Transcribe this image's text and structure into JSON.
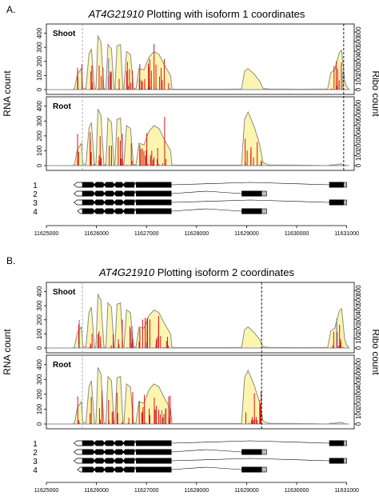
{
  "figure": {
    "panels": [
      {
        "letter": "A.",
        "title_gene": "AT4G21910",
        "title_rest": " Plotting with isoform 1 coordinates",
        "start_dash": 11625720,
        "stop_dash": 11630940,
        "tracks": [
          {
            "label": "Shoot",
            "stop_style": "dark"
          },
          {
            "label": "Root",
            "stop_style": "dark"
          }
        ]
      },
      {
        "letter": "B.",
        "title_gene": "AT4G21910",
        "title_rest": " Plotting isoform 2 coordinates",
        "start_dash": 11625720,
        "stop_dash": 11629300,
        "tracks": [
          {
            "label": "Shoot",
            "stop_style": "dark"
          },
          {
            "label": "Root",
            "stop_style": "dark"
          }
        ]
      }
    ],
    "rna_axis": {
      "label": "RNA count",
      "ticks": [
        "0",
        "100",
        "200",
        "300",
        "400"
      ]
    },
    "ribo_axis": {
      "label": "Ribo count",
      "ticks": [
        "0",
        "100",
        "200",
        "300",
        "400",
        "500",
        "600"
      ]
    },
    "x_axis": {
      "ticks": [
        11625000,
        11626000,
        11627000,
        11628000,
        11629000,
        11630000,
        11631000
      ],
      "tick_labels": [
        "11625000",
        "11626000",
        "11627000",
        "11628000",
        "11629000",
        "11630000",
        "11631000"
      ]
    },
    "isoforms": [
      {
        "label": "1",
        "start": 11625550,
        "end": 11631000,
        "utr5": [
          11625550,
          11625720
        ],
        "cds": [
          [
            11625720,
            11626760
          ],
          [
            11626790,
            11627500
          ],
          [
            11630650,
            11630940
          ]
        ],
        "utr3": [
          11630940,
          11631000
        ]
      },
      {
        "label": "2",
        "start": 11625550,
        "end": 11629400,
        "utr5": [
          11625550,
          11625720
        ],
        "cds": [
          [
            11625720,
            11626760
          ],
          [
            11626790,
            11627500
          ],
          [
            11628900,
            11629300
          ]
        ],
        "utr3": [
          11629300,
          11629400
        ]
      },
      {
        "label": "3",
        "start": 11625550,
        "end": 11631000,
        "utr5": [
          11625550,
          11625720
        ],
        "cds": [
          [
            11625720,
            11626760
          ],
          [
            11626790,
            11627500
          ],
          [
            11630650,
            11630940
          ]
        ],
        "utr3": [
          11630940,
          11631000
        ]
      },
      {
        "label": "4",
        "start": 11625620,
        "end": 11629400,
        "utr5": [
          11625620,
          11625720
        ],
        "cds": [
          [
            11625720,
            11626760
          ],
          [
            11626790,
            11627500
          ],
          [
            11628900,
            11629300
          ]
        ],
        "utr3": [
          11629300,
          11629400
        ]
      }
    ],
    "colors": {
      "rna_fill": "#fbf5b0",
      "rna_line": "#8c8c8c",
      "ribo": "#d9141b",
      "ribo_alt": "#5c6fb5",
      "dash": "#555555"
    },
    "coverage_profile": [
      [
        11625000,
        0
      ],
      [
        11625520,
        0
      ],
      [
        11625560,
        6
      ],
      [
        11625620,
        110
      ],
      [
        11625700,
        150
      ],
      [
        11625730,
        10
      ],
      [
        11625790,
        8
      ],
      [
        11625850,
        250
      ],
      [
        11625900,
        290
      ],
      [
        11625960,
        6
      ],
      [
        11625990,
        8
      ],
      [
        11626030,
        380
      ],
      [
        11626090,
        340
      ],
      [
        11626150,
        6
      ],
      [
        11626190,
        6
      ],
      [
        11626230,
        320
      ],
      [
        11626300,
        290
      ],
      [
        11626350,
        6
      ],
      [
        11626370,
        6
      ],
      [
        11626410,
        310
      ],
      [
        11626480,
        320
      ],
      [
        11626530,
        6
      ],
      [
        11626550,
        6
      ],
      [
        11626600,
        270
      ],
      [
        11626680,
        250
      ],
      [
        11626740,
        6
      ],
      [
        11626790,
        6
      ],
      [
        11626850,
        150
      ],
      [
        11626950,
        140
      ],
      [
        11627050,
        230
      ],
      [
        11627150,
        270
      ],
      [
        11627250,
        250
      ],
      [
        11627350,
        180
      ],
      [
        11627480,
        100
      ],
      [
        11627510,
        4
      ],
      [
        11627600,
        3
      ],
      [
        11628200,
        3
      ],
      [
        11628600,
        3
      ],
      [
        11628900,
        4
      ],
      [
        11628960,
        130
      ],
      [
        11629030,
        150
      ],
      [
        11629150,
        110
      ],
      [
        11629260,
        60
      ],
      [
        11629330,
        8
      ],
      [
        11629450,
        4
      ],
      [
        11630000,
        3
      ],
      [
        11630620,
        4
      ],
      [
        11630680,
        120
      ],
      [
        11630760,
        140
      ],
      [
        11630850,
        260
      ],
      [
        11630900,
        280
      ],
      [
        11630960,
        60
      ],
      [
        11631000,
        20
      ],
      [
        11631050,
        0
      ]
    ]
  }
}
